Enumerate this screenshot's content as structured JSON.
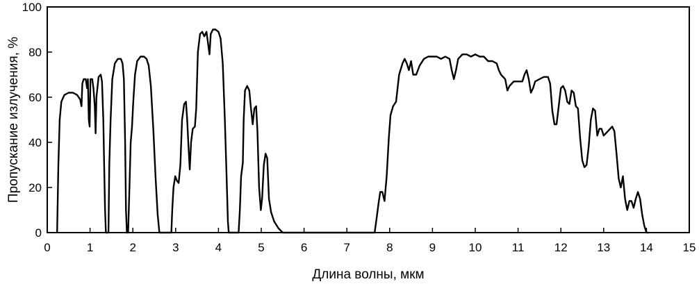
{
  "chart_data": {
    "type": "line",
    "title": "",
    "xlabel": "Длина волны, мкм",
    "ylabel": "Пропускание излучения, %",
    "xlim": [
      0,
      15
    ],
    "ylim": [
      0,
      100
    ],
    "x_ticks": [
      "0",
      "1",
      "2",
      "3",
      "4",
      "5",
      "6",
      "7",
      "8",
      "9",
      "10",
      "11",
      "12",
      "13",
      "14",
      "15"
    ],
    "y_ticks": [
      "0",
      "20",
      "40",
      "60",
      "80",
      "100"
    ],
    "grid": false,
    "legend": "none",
    "line_color": "#000000",
    "series": [
      {
        "points": [
          [
            0.23,
            0
          ],
          [
            0.26,
            30
          ],
          [
            0.29,
            50
          ],
          [
            0.33,
            58
          ],
          [
            0.4,
            61
          ],
          [
            0.5,
            62
          ],
          [
            0.6,
            62
          ],
          [
            0.7,
            61
          ],
          [
            0.77,
            59
          ],
          [
            0.8,
            56
          ],
          [
            0.82,
            66
          ],
          [
            0.85,
            68
          ],
          [
            0.9,
            68
          ],
          [
            0.93,
            64
          ],
          [
            0.95,
            68
          ],
          [
            0.97,
            50
          ],
          [
            0.99,
            47
          ],
          [
            1.01,
            68
          ],
          [
            1.05,
            68
          ],
          [
            1.08,
            64
          ],
          [
            1.11,
            56
          ],
          [
            1.13,
            44
          ],
          [
            1.15,
            60
          ],
          [
            1.2,
            69
          ],
          [
            1.25,
            70
          ],
          [
            1.28,
            67
          ],
          [
            1.31,
            50
          ],
          [
            1.33,
            30
          ],
          [
            1.35,
            10
          ],
          [
            1.37,
            0
          ],
          [
            1.4,
            0
          ],
          [
            1.43,
            0
          ],
          [
            1.45,
            30
          ],
          [
            1.48,
            50
          ],
          [
            1.52,
            68
          ],
          [
            1.58,
            75
          ],
          [
            1.65,
            77
          ],
          [
            1.72,
            77
          ],
          [
            1.76,
            75
          ],
          [
            1.79,
            68
          ],
          [
            1.82,
            40
          ],
          [
            1.84,
            10
          ],
          [
            1.86,
            0
          ],
          [
            1.89,
            0
          ],
          [
            1.92,
            20
          ],
          [
            1.95,
            40
          ],
          [
            1.98,
            47
          ],
          [
            2.01,
            58
          ],
          [
            2.05,
            70
          ],
          [
            2.1,
            76
          ],
          [
            2.18,
            78
          ],
          [
            2.26,
            78
          ],
          [
            2.32,
            77
          ],
          [
            2.37,
            74
          ],
          [
            2.42,
            65
          ],
          [
            2.48,
            45
          ],
          [
            2.53,
            25
          ],
          [
            2.58,
            8
          ],
          [
            2.62,
            0
          ],
          [
            2.65,
            0
          ],
          [
            2.9,
            0
          ],
          [
            2.92,
            10
          ],
          [
            2.95,
            20
          ],
          [
            2.99,
            25
          ],
          [
            3.03,
            23
          ],
          [
            3.07,
            22
          ],
          [
            3.11,
            30
          ],
          [
            3.15,
            50
          ],
          [
            3.2,
            57
          ],
          [
            3.24,
            58
          ],
          [
            3.27,
            50
          ],
          [
            3.3,
            38
          ],
          [
            3.33,
            28
          ],
          [
            3.36,
            40
          ],
          [
            3.4,
            46
          ],
          [
            3.45,
            47
          ],
          [
            3.48,
            55
          ],
          [
            3.52,
            80
          ],
          [
            3.57,
            88
          ],
          [
            3.62,
            89
          ],
          [
            3.67,
            87
          ],
          [
            3.72,
            89
          ],
          [
            3.77,
            82
          ],
          [
            3.79,
            79
          ],
          [
            3.82,
            88
          ],
          [
            3.87,
            90
          ],
          [
            3.93,
            90
          ],
          [
            4.0,
            89
          ],
          [
            4.05,
            86
          ],
          [
            4.1,
            75
          ],
          [
            4.15,
            50
          ],
          [
            4.19,
            25
          ],
          [
            4.22,
            5
          ],
          [
            4.24,
            0
          ],
          [
            4.27,
            0
          ],
          [
            4.47,
            0
          ],
          [
            4.5,
            10
          ],
          [
            4.53,
            25
          ],
          [
            4.57,
            31
          ],
          [
            4.59,
            50
          ],
          [
            4.62,
            63
          ],
          [
            4.67,
            65
          ],
          [
            4.72,
            63
          ],
          [
            4.76,
            55
          ],
          [
            4.8,
            48
          ],
          [
            4.84,
            55
          ],
          [
            4.88,
            56
          ],
          [
            4.91,
            45
          ],
          [
            4.95,
            20
          ],
          [
            4.99,
            10
          ],
          [
            5.02,
            15
          ],
          [
            5.06,
            30
          ],
          [
            5.1,
            35
          ],
          [
            5.14,
            33
          ],
          [
            5.18,
            15
          ],
          [
            5.23,
            9
          ],
          [
            5.3,
            5
          ],
          [
            5.4,
            2
          ],
          [
            5.5,
            0
          ],
          [
            5.6,
            0
          ],
          [
            7.6,
            0
          ],
          [
            7.65,
            0
          ],
          [
            7.7,
            7
          ],
          [
            7.74,
            13
          ],
          [
            7.78,
            18
          ],
          [
            7.83,
            18
          ],
          [
            7.88,
            14
          ],
          [
            7.93,
            25
          ],
          [
            7.98,
            42
          ],
          [
            8.02,
            52
          ],
          [
            8.08,
            56
          ],
          [
            8.15,
            58
          ],
          [
            8.22,
            70
          ],
          [
            8.3,
            75
          ],
          [
            8.35,
            77
          ],
          [
            8.4,
            75
          ],
          [
            8.45,
            72
          ],
          [
            8.5,
            76
          ],
          [
            8.55,
            70
          ],
          [
            8.62,
            70
          ],
          [
            8.7,
            74
          ],
          [
            8.8,
            77
          ],
          [
            8.9,
            78
          ],
          [
            9.0,
            78
          ],
          [
            9.1,
            78
          ],
          [
            9.2,
            77
          ],
          [
            9.3,
            78
          ],
          [
            9.4,
            77
          ],
          [
            9.45,
            72
          ],
          [
            9.5,
            68
          ],
          [
            9.55,
            72
          ],
          [
            9.6,
            77
          ],
          [
            9.7,
            79
          ],
          [
            9.8,
            79
          ],
          [
            9.9,
            78
          ],
          [
            10.0,
            79
          ],
          [
            10.1,
            78
          ],
          [
            10.2,
            78
          ],
          [
            10.3,
            76
          ],
          [
            10.4,
            76
          ],
          [
            10.5,
            75
          ],
          [
            10.55,
            72
          ],
          [
            10.6,
            70
          ],
          [
            10.7,
            68
          ],
          [
            10.75,
            63
          ],
          [
            10.8,
            65
          ],
          [
            10.9,
            67
          ],
          [
            11.0,
            67
          ],
          [
            11.1,
            67
          ],
          [
            11.15,
            70
          ],
          [
            11.2,
            72
          ],
          [
            11.25,
            68
          ],
          [
            11.3,
            62
          ],
          [
            11.35,
            64
          ],
          [
            11.4,
            67
          ],
          [
            11.5,
            68
          ],
          [
            11.6,
            69
          ],
          [
            11.7,
            69
          ],
          [
            11.75,
            66
          ],
          [
            11.8,
            54
          ],
          [
            11.85,
            48
          ],
          [
            11.9,
            48
          ],
          [
            11.95,
            56
          ],
          [
            12.0,
            64
          ],
          [
            12.05,
            65
          ],
          [
            12.1,
            63
          ],
          [
            12.15,
            58
          ],
          [
            12.2,
            57
          ],
          [
            12.25,
            63
          ],
          [
            12.3,
            62
          ],
          [
            12.35,
            56
          ],
          [
            12.4,
            55
          ],
          [
            12.45,
            42
          ],
          [
            12.5,
            32
          ],
          [
            12.55,
            29
          ],
          [
            12.6,
            30
          ],
          [
            12.65,
            38
          ],
          [
            12.7,
            50
          ],
          [
            12.75,
            55
          ],
          [
            12.8,
            54
          ],
          [
            12.85,
            43
          ],
          [
            12.9,
            46
          ],
          [
            12.95,
            46
          ],
          [
            13.0,
            43
          ],
          [
            13.1,
            45
          ],
          [
            13.2,
            47
          ],
          [
            13.25,
            45
          ],
          [
            13.3,
            35
          ],
          [
            13.35,
            24
          ],
          [
            13.4,
            20
          ],
          [
            13.45,
            25
          ],
          [
            13.5,
            15
          ],
          [
            13.55,
            10
          ],
          [
            13.6,
            14
          ],
          [
            13.65,
            14
          ],
          [
            13.7,
            11
          ],
          [
            13.75,
            15
          ],
          [
            13.8,
            18
          ],
          [
            13.85,
            15
          ],
          [
            13.9,
            8
          ],
          [
            13.95,
            3
          ],
          [
            14.0,
            0
          ],
          [
            14.05,
            0
          ]
        ]
      }
    ]
  }
}
